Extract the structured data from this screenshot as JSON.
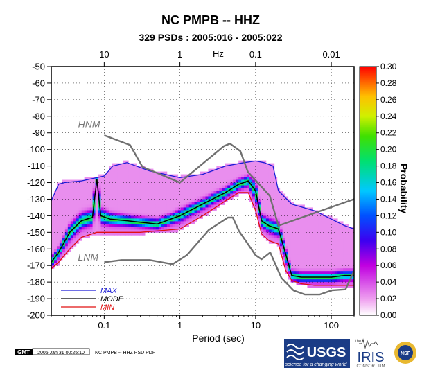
{
  "chart_data": {
    "type": "heatmap",
    "title": "NC PMPB -- HHZ",
    "subtitle": "329 PSDs : 2005:016 - 2005:022",
    "xlabel": "Period (sec)",
    "top_xlabel": "Hz",
    "colorbar_label": "Probability",
    "x_scale": "log",
    "xlim": [
      0.02,
      200
    ],
    "ylim": [
      -200,
      -50
    ],
    "grid": true,
    "bottom_ticks": [
      {
        "value": 0.1,
        "label": "0.1"
      },
      {
        "value": 1,
        "label": "1"
      },
      {
        "value": 10,
        "label": "10"
      },
      {
        "value": 100,
        "label": "100"
      }
    ],
    "top_ticks": [
      {
        "value": 10,
        "label": "10"
      },
      {
        "value": 1,
        "label": "1"
      },
      {
        "value": 0.1,
        "label": "0.1"
      },
      {
        "value": 0.01,
        "label": "0.01"
      }
    ],
    "y_ticks": [
      -50,
      -60,
      -70,
      -80,
      -90,
      -100,
      -110,
      -120,
      -130,
      -140,
      -150,
      -160,
      -170,
      -180,
      -190,
      -200
    ],
    "colorbar": {
      "range": [
        0,
        0.3
      ],
      "ticks": [
        "0.00",
        "0.02",
        "0.04",
        "0.06",
        "0.08",
        "0.10",
        "0.12",
        "0.14",
        "0.16",
        "0.18",
        "0.20",
        "0.22",
        "0.24",
        "0.26",
        "0.28",
        "0.30"
      ]
    },
    "annotations": [
      {
        "text": "HNM",
        "x": 0.045,
        "y": -87
      },
      {
        "text": "LNM",
        "x": 0.045,
        "y": -167
      }
    ],
    "legend": {
      "placement": "bottom-left",
      "entries": [
        {
          "name": "MAX",
          "color": "#1a1ad6"
        },
        {
          "name": "MODE",
          "color": "#000000"
        },
        {
          "name": "MIN",
          "color": "#e01010"
        }
      ]
    },
    "series": [
      {
        "name": "MAX",
        "color": "#1a1ad6",
        "x": [
          0.02,
          0.025,
          0.03,
          0.05,
          0.08,
          0.1,
          0.13,
          0.2,
          0.4,
          1,
          2,
          4,
          7,
          10,
          13,
          17,
          20,
          30,
          60,
          100,
          150,
          200
        ],
        "y": [
          -131,
          -121,
          -120,
          -119,
          -117,
          -116,
          -110,
          -108,
          -113,
          -117,
          -115,
          -110,
          -108,
          -107,
          -108,
          -110,
          -125,
          -133,
          -137,
          -142,
          -146,
          -148
        ]
      },
      {
        "name": "MODE",
        "color": "#000000",
        "x": [
          0.02,
          0.025,
          0.035,
          0.05,
          0.07,
          0.08,
          0.09,
          0.12,
          0.2,
          0.5,
          1,
          2,
          4,
          6,
          8,
          10,
          12,
          15,
          20,
          25,
          30,
          40,
          60,
          100,
          150,
          200
        ],
        "y": [
          -168,
          -162,
          -150,
          -143,
          -141,
          -118,
          -140,
          -142,
          -143,
          -145,
          -140,
          -133,
          -126,
          -121,
          -119,
          -125,
          -143,
          -146,
          -148,
          -163,
          -176,
          -177,
          -177,
          -177,
          -176,
          -176
        ]
      },
      {
        "name": "MIN",
        "color": "#e01010",
        "x": [
          0.02,
          0.025,
          0.035,
          0.05,
          0.08,
          0.1,
          0.15,
          0.3,
          1,
          2,
          4,
          6,
          8,
          10,
          12,
          15,
          20,
          25,
          30,
          40,
          60,
          100,
          150,
          200
        ],
        "y": [
          -172,
          -168,
          -160,
          -153,
          -150,
          -150,
          -150,
          -150,
          -148,
          -140,
          -131,
          -126,
          -126,
          -137,
          -151,
          -155,
          -157,
          -173,
          -179,
          -181,
          -182,
          -182,
          -182,
          -182
        ]
      },
      {
        "name": "HNM",
        "color": "#707070",
        "x": [
          0.1,
          0.22,
          0.32,
          1,
          3.8,
          4.6,
          6.3,
          7.9,
          15.4,
          20,
          354
        ],
        "y": [
          -91.5,
          -97.4,
          -110.5,
          -120,
          -98,
          -96.5,
          -101,
          -113.5,
          -128,
          -146,
          -126
        ]
      },
      {
        "name": "LNM",
        "color": "#707070",
        "x": [
          0.1,
          0.17,
          0.4,
          0.8,
          1.24,
          2.4,
          4.3,
          5,
          6,
          10,
          12,
          15.6,
          21.9,
          31.6,
          45,
          70,
          101,
          154,
          328
        ],
        "y": [
          -168,
          -166.7,
          -166.7,
          -169.2,
          -163.7,
          -148.6,
          -141.1,
          -141.1,
          -149.0,
          -163.8,
          -166.2,
          -162.1,
          -177.5,
          -185.0,
          -187.5,
          -187.5,
          -185.0,
          -184.4,
          -151.9
        ]
      }
    ]
  },
  "footer": {
    "gmt_label": "GMT",
    "timestamp": "2005 Jan 31 00:25:10",
    "caption": "NC PMPB -- HHZ PSD PDF",
    "usgs_text": "USGS",
    "usgs_tagline": "science for a changing world",
    "iris_small": "the",
    "iris_text": "IRIS",
    "iris_sub": "CONSORTIUM",
    "nsf_text": "NSF"
  }
}
